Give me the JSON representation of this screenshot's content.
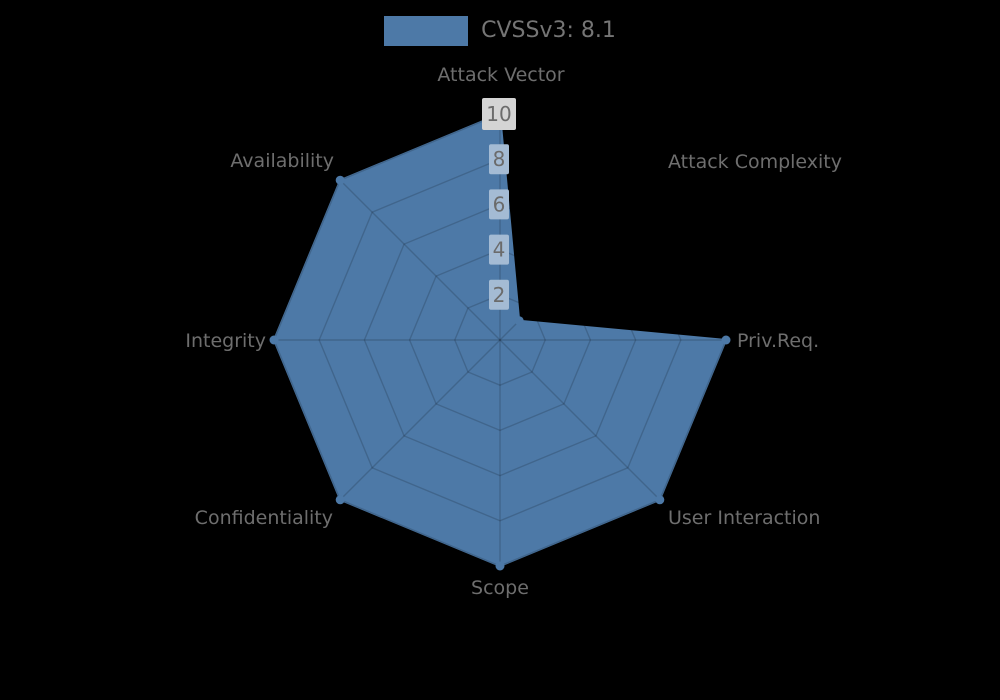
{
  "legend": {
    "label": "CVSSv3: 8.1",
    "swatch_color": "#4d79a7"
  },
  "chart_data": {
    "type": "radar",
    "title": "CVSSv3: 8.1",
    "axes": [
      "Attack Vector",
      "Attack Complexity",
      "Priv.Req.",
      "User Interaction",
      "Scope",
      "Confidentiality",
      "Integrity",
      "Availability"
    ],
    "series": [
      {
        "name": "CVSSv3: 8.1",
        "values": [
          10,
          1.2,
          10,
          10,
          10,
          10,
          10,
          10
        ]
      }
    ],
    "ticks": [
      2,
      4,
      6,
      8,
      10
    ],
    "rlim": [
      0,
      10
    ],
    "grid": true,
    "legend_position": "top-center",
    "colors": {
      "fill": "#4d79a7",
      "grid_line": "rgba(0,0,0,0.16)",
      "axis_label": "#6e6e6e",
      "tick_text": "#6b6b6b",
      "tick_box_inner": "#a4bbd4",
      "tick_box_outer": "#d4d4d4",
      "background": "#000000"
    }
  }
}
